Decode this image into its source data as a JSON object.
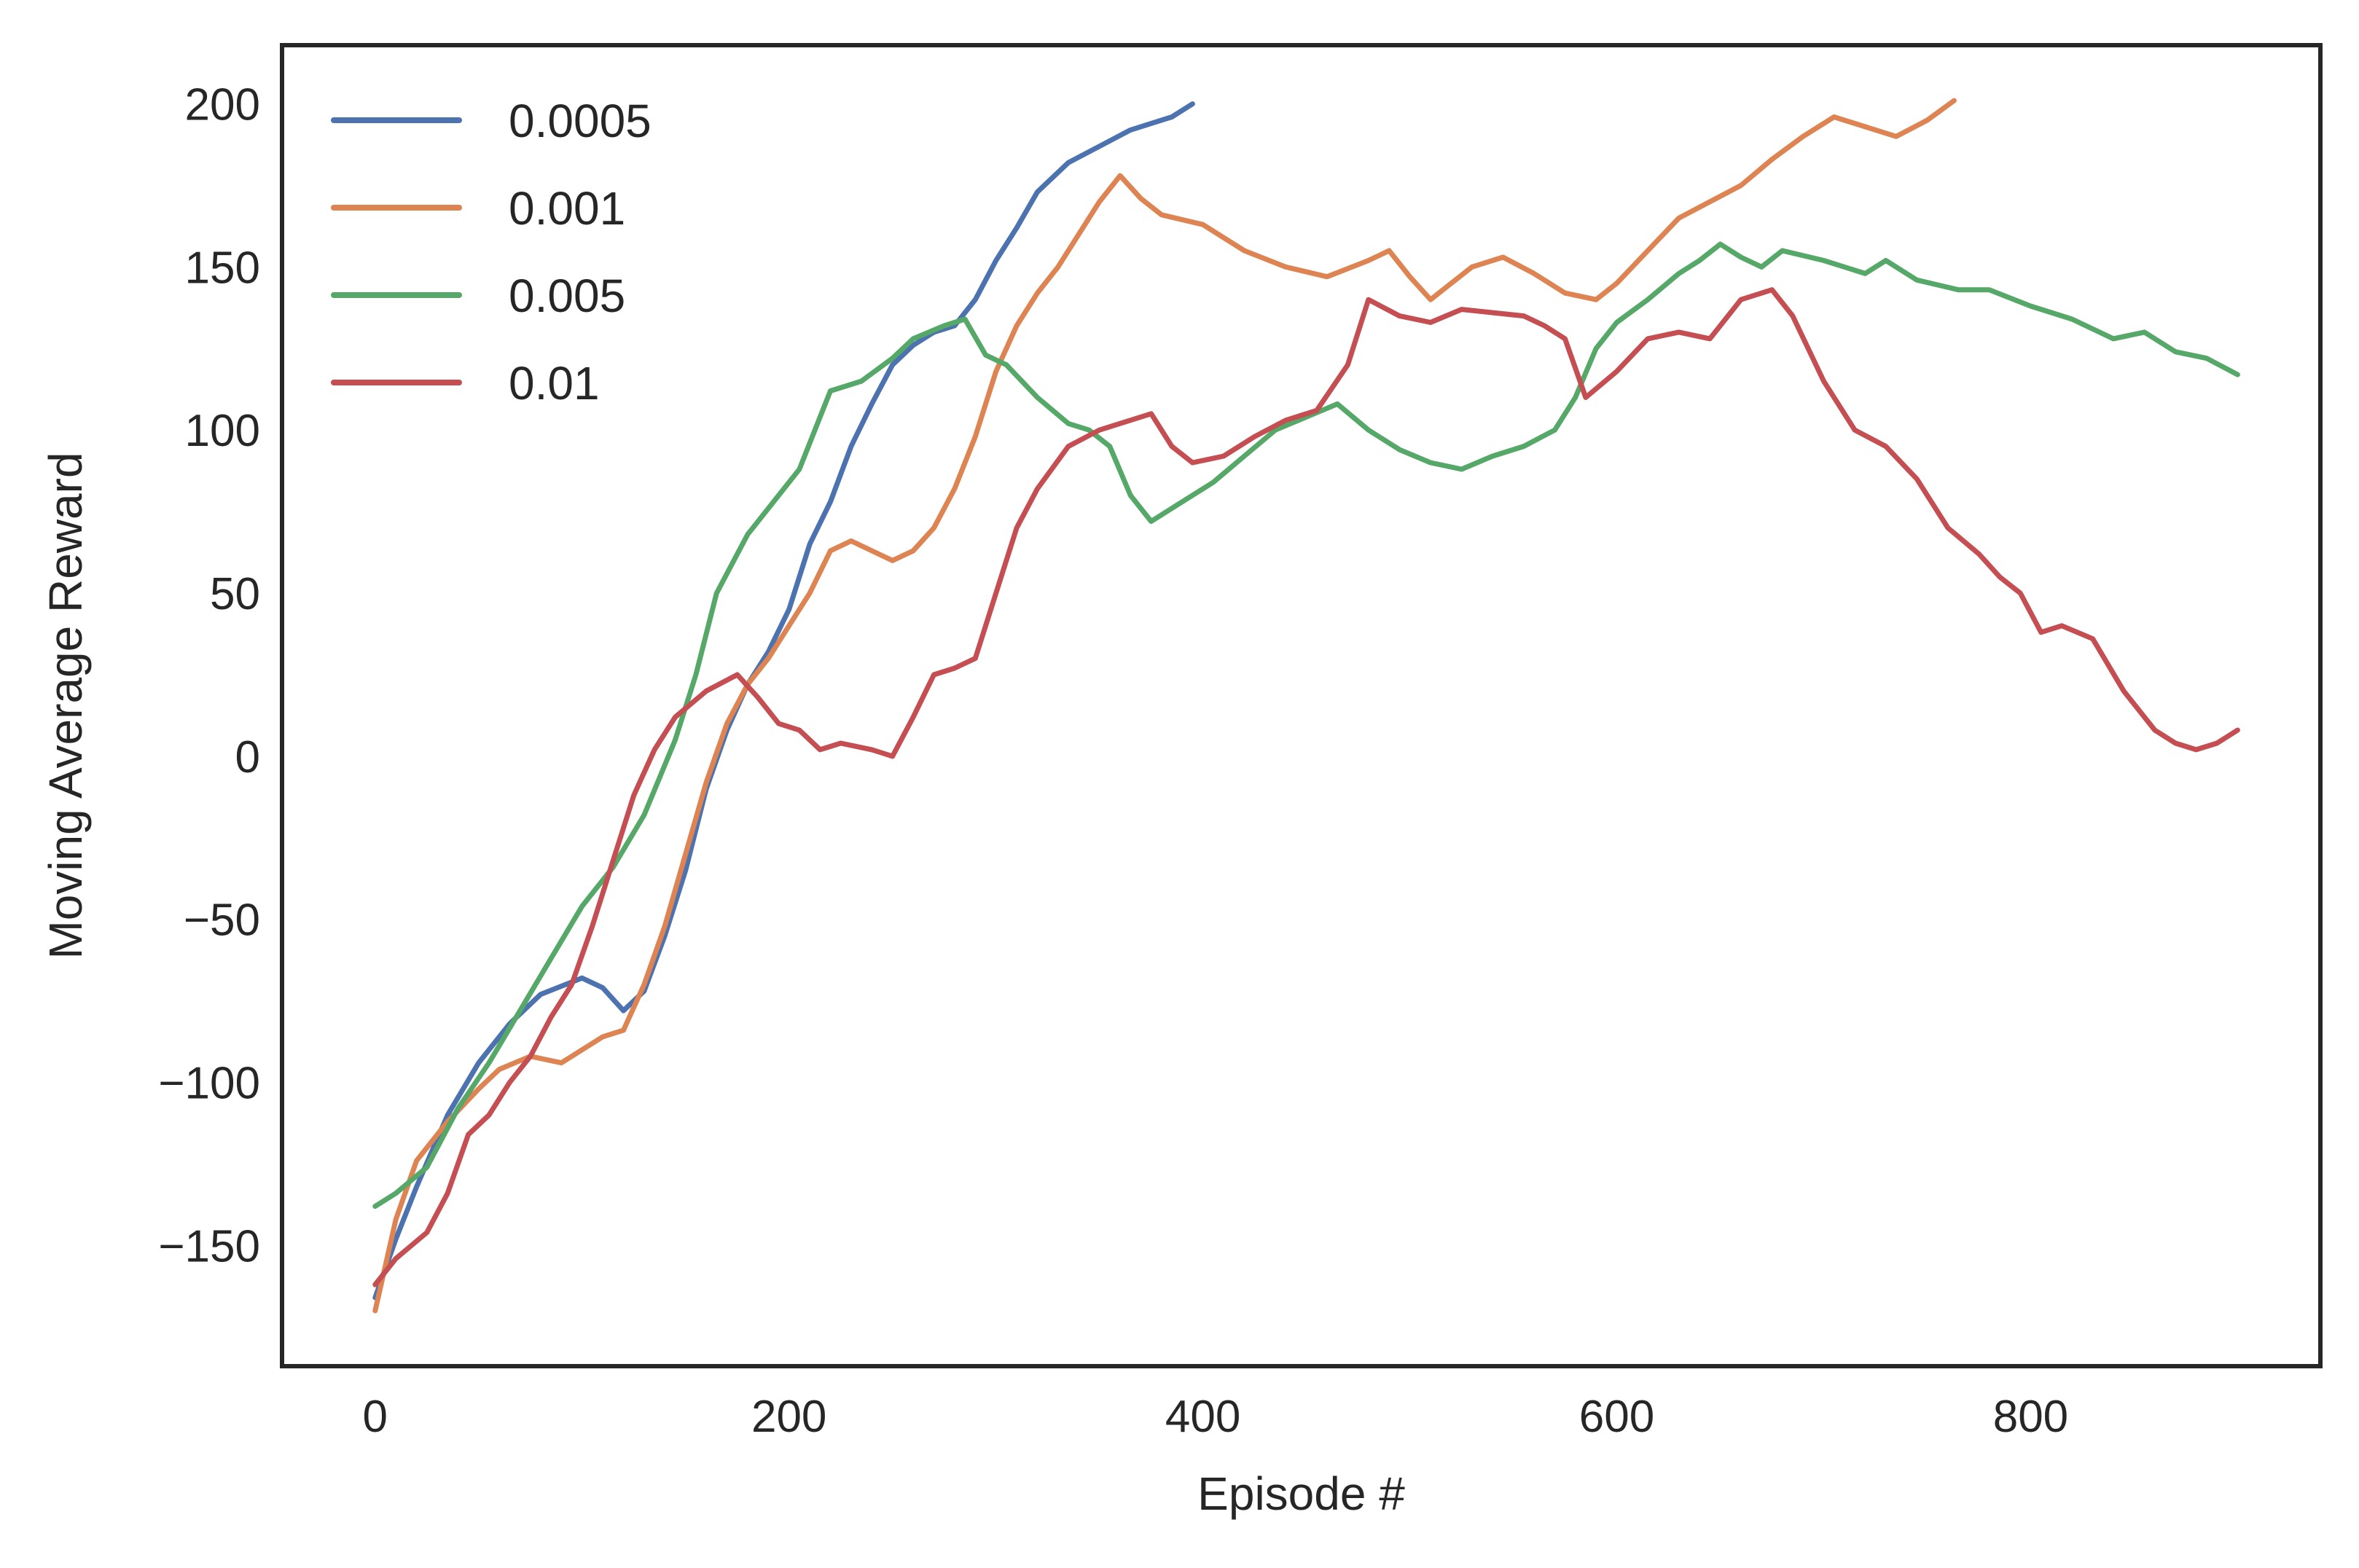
{
  "chart_data": {
    "type": "line",
    "title": "",
    "xlabel": "Episode #",
    "ylabel": "Moving Average Reward",
    "xlim": [
      -45,
      940
    ],
    "ylim": [
      -187,
      218
    ],
    "xticks": [
      0,
      200,
      400,
      600,
      800
    ],
    "xtick_labels": [
      "0",
      "200",
      "400",
      "600",
      "800"
    ],
    "yticks": [
      -150,
      -100,
      -50,
      0,
      50,
      100,
      150,
      200
    ],
    "ytick_labels": [
      "−150",
      "−100",
      "−50",
      "0",
      "50",
      "100",
      "150",
      "200"
    ],
    "grid": false,
    "legend_position": "top-left",
    "series": [
      {
        "name": "0.0005",
        "color": "#4c72b0",
        "points": [
          [
            0,
            -166
          ],
          [
            10,
            -148
          ],
          [
            20,
            -132
          ],
          [
            35,
            -110
          ],
          [
            50,
            -94
          ],
          [
            65,
            -82
          ],
          [
            80,
            -73
          ],
          [
            100,
            -68
          ],
          [
            110,
            -71
          ],
          [
            120,
            -78
          ],
          [
            130,
            -72
          ],
          [
            140,
            -55
          ],
          [
            150,
            -35
          ],
          [
            160,
            -10
          ],
          [
            170,
            8
          ],
          [
            180,
            22
          ],
          [
            190,
            32
          ],
          [
            200,
            45
          ],
          [
            210,
            65
          ],
          [
            220,
            78
          ],
          [
            230,
            95
          ],
          [
            240,
            108
          ],
          [
            250,
            120
          ],
          [
            260,
            126
          ],
          [
            270,
            130
          ],
          [
            280,
            132
          ],
          [
            290,
            140
          ],
          [
            300,
            152
          ],
          [
            310,
            162
          ],
          [
            320,
            173
          ],
          [
            335,
            182
          ],
          [
            350,
            187
          ],
          [
            365,
            192
          ],
          [
            375,
            194
          ],
          [
            385,
            196
          ],
          [
            395,
            200
          ]
        ]
      },
      {
        "name": "0.001",
        "color": "#dd8452",
        "points": [
          [
            0,
            -170
          ],
          [
            10,
            -142
          ],
          [
            20,
            -124
          ],
          [
            35,
            -112
          ],
          [
            50,
            -102
          ],
          [
            60,
            -96
          ],
          [
            75,
            -92
          ],
          [
            90,
            -94
          ],
          [
            100,
            -90
          ],
          [
            110,
            -86
          ],
          [
            120,
            -84
          ],
          [
            130,
            -70
          ],
          [
            140,
            -52
          ],
          [
            150,
            -30
          ],
          [
            160,
            -8
          ],
          [
            170,
            10
          ],
          [
            180,
            22
          ],
          [
            190,
            30
          ],
          [
            200,
            40
          ],
          [
            210,
            50
          ],
          [
            220,
            63
          ],
          [
            230,
            66
          ],
          [
            240,
            63
          ],
          [
            250,
            60
          ],
          [
            260,
            63
          ],
          [
            270,
            70
          ],
          [
            280,
            82
          ],
          [
            290,
            98
          ],
          [
            300,
            118
          ],
          [
            310,
            132
          ],
          [
            320,
            142
          ],
          [
            330,
            150
          ],
          [
            340,
            160
          ],
          [
            350,
            170
          ],
          [
            360,
            178
          ],
          [
            370,
            171
          ],
          [
            380,
            166
          ],
          [
            400,
            163
          ],
          [
            420,
            155
          ],
          [
            440,
            150
          ],
          [
            460,
            147
          ],
          [
            480,
            152
          ],
          [
            490,
            155
          ],
          [
            500,
            147
          ],
          [
            510,
            140
          ],
          [
            520,
            145
          ],
          [
            530,
            150
          ],
          [
            545,
            153
          ],
          [
            560,
            148
          ],
          [
            575,
            142
          ],
          [
            590,
            140
          ],
          [
            600,
            145
          ],
          [
            615,
            155
          ],
          [
            630,
            165
          ],
          [
            645,
            170
          ],
          [
            660,
            175
          ],
          [
            675,
            183
          ],
          [
            690,
            190
          ],
          [
            705,
            196
          ],
          [
            720,
            193
          ],
          [
            735,
            190
          ],
          [
            750,
            195
          ],
          [
            763,
            201
          ]
        ]
      },
      {
        "name": "0.005",
        "color": "#55a868",
        "points": [
          [
            0,
            -138
          ],
          [
            10,
            -134
          ],
          [
            25,
            -126
          ],
          [
            40,
            -108
          ],
          [
            55,
            -94
          ],
          [
            70,
            -78
          ],
          [
            85,
            -62
          ],
          [
            100,
            -46
          ],
          [
            115,
            -34
          ],
          [
            130,
            -18
          ],
          [
            145,
            5
          ],
          [
            155,
            25
          ],
          [
            165,
            50
          ],
          [
            180,
            68
          ],
          [
            195,
            80
          ],
          [
            205,
            88
          ],
          [
            215,
            104
          ],
          [
            220,
            112
          ],
          [
            235,
            115
          ],
          [
            250,
            122
          ],
          [
            260,
            128
          ],
          [
            275,
            132
          ],
          [
            285,
            134
          ],
          [
            295,
            123
          ],
          [
            305,
            120
          ],
          [
            320,
            110
          ],
          [
            335,
            102
          ],
          [
            345,
            100
          ],
          [
            355,
            95
          ],
          [
            365,
            80
          ],
          [
            375,
            72
          ],
          [
            390,
            78
          ],
          [
            405,
            84
          ],
          [
            420,
            92
          ],
          [
            435,
            100
          ],
          [
            450,
            104
          ],
          [
            465,
            108
          ],
          [
            480,
            100
          ],
          [
            495,
            94
          ],
          [
            510,
            90
          ],
          [
            525,
            88
          ],
          [
            540,
            92
          ],
          [
            555,
            95
          ],
          [
            570,
            100
          ],
          [
            580,
            110
          ],
          [
            590,
            125
          ],
          [
            600,
            133
          ],
          [
            615,
            140
          ],
          [
            630,
            148
          ],
          [
            640,
            152
          ],
          [
            650,
            157
          ],
          [
            660,
            153
          ],
          [
            670,
            150
          ],
          [
            680,
            155
          ],
          [
            700,
            152
          ],
          [
            720,
            148
          ],
          [
            730,
            152
          ],
          [
            745,
            146
          ],
          [
            765,
            143
          ],
          [
            780,
            143
          ],
          [
            800,
            138
          ],
          [
            820,
            134
          ],
          [
            840,
            128
          ],
          [
            855,
            130
          ],
          [
            870,
            124
          ],
          [
            885,
            122
          ],
          [
            900,
            117
          ]
        ]
      },
      {
        "name": "0.01",
        "color": "#c44e52",
        "points": [
          [
            0,
            -162
          ],
          [
            10,
            -154
          ],
          [
            25,
            -146
          ],
          [
            35,
            -134
          ],
          [
            45,
            -116
          ],
          [
            55,
            -110
          ],
          [
            65,
            -100
          ],
          [
            75,
            -92
          ],
          [
            85,
            -80
          ],
          [
            95,
            -70
          ],
          [
            105,
            -52
          ],
          [
            115,
            -32
          ],
          [
            125,
            -12
          ],
          [
            135,
            2
          ],
          [
            145,
            12
          ],
          [
            160,
            20
          ],
          [
            175,
            25
          ],
          [
            185,
            18
          ],
          [
            195,
            10
          ],
          [
            205,
            8
          ],
          [
            215,
            2
          ],
          [
            225,
            4
          ],
          [
            240,
            2
          ],
          [
            250,
            0
          ],
          [
            260,
            12
          ],
          [
            270,
            25
          ],
          [
            280,
            27
          ],
          [
            290,
            30
          ],
          [
            300,
            50
          ],
          [
            310,
            70
          ],
          [
            320,
            82
          ],
          [
            335,
            95
          ],
          [
            350,
            100
          ],
          [
            365,
            103
          ],
          [
            375,
            105
          ],
          [
            385,
            95
          ],
          [
            395,
            90
          ],
          [
            410,
            92
          ],
          [
            425,
            98
          ],
          [
            440,
            103
          ],
          [
            455,
            106
          ],
          [
            470,
            120
          ],
          [
            480,
            140
          ],
          [
            495,
            135
          ],
          [
            510,
            133
          ],
          [
            525,
            137
          ],
          [
            540,
            136
          ],
          [
            555,
            135
          ],
          [
            565,
            132
          ],
          [
            575,
            128
          ],
          [
            585,
            110
          ],
          [
            600,
            118
          ],
          [
            615,
            128
          ],
          [
            630,
            130
          ],
          [
            645,
            128
          ],
          [
            660,
            140
          ],
          [
            675,
            143
          ],
          [
            685,
            135
          ],
          [
            700,
            115
          ],
          [
            715,
            100
          ],
          [
            730,
            95
          ],
          [
            745,
            85
          ],
          [
            760,
            70
          ],
          [
            775,
            62
          ],
          [
            785,
            55
          ],
          [
            795,
            50
          ],
          [
            805,
            38
          ],
          [
            815,
            40
          ],
          [
            830,
            36
          ],
          [
            845,
            20
          ],
          [
            860,
            8
          ],
          [
            870,
            4
          ],
          [
            880,
            2
          ],
          [
            890,
            4
          ],
          [
            900,
            8
          ]
        ]
      }
    ]
  }
}
